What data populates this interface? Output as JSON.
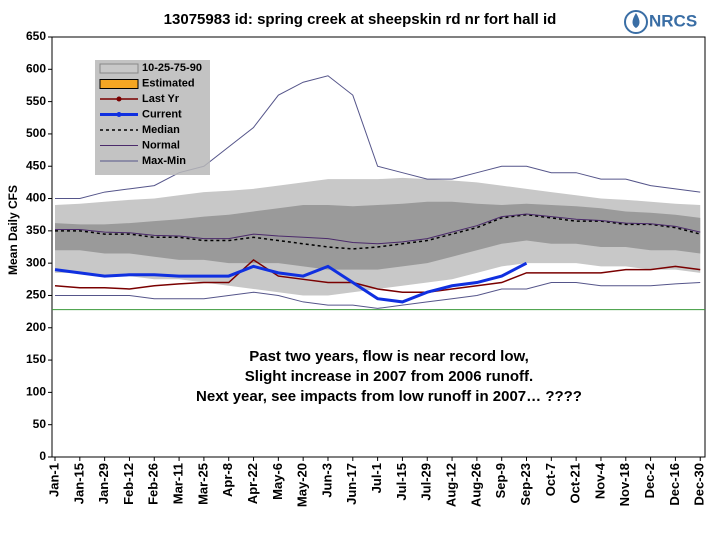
{
  "logo": "NRCS",
  "chart_data": {
    "type": "hydrograph",
    "title": "13075983 id: spring creek at sheepskin rd nr fort hall id",
    "y_label": "Mean Daily CFS",
    "xlim": [
      1,
      366
    ],
    "ylim": [
      0,
      650
    ],
    "yticks": [
      0,
      50,
      100,
      150,
      200,
      250,
      300,
      350,
      400,
      450,
      500,
      550,
      600,
      650
    ],
    "xticks": [
      {
        "value": 1,
        "label": "Jan-1"
      },
      {
        "value": 15,
        "label": "Jan-15"
      },
      {
        "value": 29,
        "label": "Jan-29"
      },
      {
        "value": 43,
        "label": "Feb-12"
      },
      {
        "value": 57,
        "label": "Feb-26"
      },
      {
        "value": 71,
        "label": "Mar-11"
      },
      {
        "value": 85,
        "label": "Mar-25"
      },
      {
        "value": 99,
        "label": "Apr-8"
      },
      {
        "value": 113,
        "label": "Apr-22"
      },
      {
        "value": 127,
        "label": "May-6"
      },
      {
        "value": 141,
        "label": "May-20"
      },
      {
        "value": 155,
        "label": "Jun-3"
      },
      {
        "value": 169,
        "label": "Jun-17"
      },
      {
        "value": 183,
        "label": "Jul-1"
      },
      {
        "value": 197,
        "label": "Jul-15"
      },
      {
        "value": 211,
        "label": "Jul-29"
      },
      {
        "value": 225,
        "label": "Aug-12"
      },
      {
        "value": 239,
        "label": "Aug-26"
      },
      {
        "value": 253,
        "label": "Sep-9"
      },
      {
        "value": 267,
        "label": "Sep-23"
      },
      {
        "value": 281,
        "label": "Oct-7"
      },
      {
        "value": 295,
        "label": "Oct-21"
      },
      {
        "value": 309,
        "label": "Nov-4"
      },
      {
        "value": 323,
        "label": "Nov-18"
      },
      {
        "value": 337,
        "label": "Dec-2"
      },
      {
        "value": 351,
        "label": "Dec-16"
      },
      {
        "value": 365,
        "label": "Dec-30"
      }
    ],
    "x": [
      1,
      15,
      29,
      43,
      57,
      71,
      85,
      99,
      113,
      127,
      141,
      155,
      169,
      183,
      197,
      211,
      225,
      239,
      253,
      267,
      281,
      295,
      309,
      323,
      337,
      351,
      365
    ],
    "reference_line": {
      "value": 228,
      "color": "#3a9a3a"
    },
    "bands": {
      "name": "10-25-75-90",
      "outer_color": "#c8c8c8",
      "inner_color": "#9a9a9a",
      "p90": [
        390,
        392,
        395,
        398,
        400,
        405,
        410,
        412,
        415,
        420,
        425,
        430,
        430,
        430,
        432,
        430,
        428,
        425,
        420,
        415,
        410,
        405,
        400,
        398,
        395,
        392,
        390
      ],
      "p75": [
        362,
        360,
        360,
        362,
        365,
        368,
        372,
        375,
        380,
        385,
        390,
        390,
        388,
        390,
        392,
        395,
        395,
        392,
        390,
        392,
        390,
        388,
        385,
        380,
        378,
        375,
        370
      ],
      "p25": [
        320,
        320,
        315,
        315,
        310,
        305,
        305,
        300,
        300,
        300,
        295,
        290,
        290,
        290,
        295,
        300,
        310,
        320,
        330,
        335,
        330,
        330,
        325,
        325,
        320,
        320,
        315
      ],
      "p10": [
        285,
        285,
        280,
        280,
        275,
        275,
        270,
        265,
        260,
        255,
        250,
        250,
        255,
        260,
        265,
        270,
        275,
        285,
        295,
        300,
        300,
        300,
        295,
        295,
        290,
        290,
        285
      ]
    },
    "maxmin": {
      "name": "Max-Min",
      "color": "#55558a",
      "max": [
        400,
        400,
        410,
        415,
        420,
        440,
        450,
        480,
        510,
        560,
        580,
        590,
        560,
        450,
        440,
        430,
        430,
        440,
        450,
        450,
        440,
        440,
        430,
        430,
        420,
        415,
        410
      ],
      "min": [
        250,
        250,
        250,
        250,
        245,
        245,
        245,
        250,
        255,
        250,
        240,
        235,
        235,
        230,
        235,
        240,
        245,
        250,
        260,
        260,
        270,
        270,
        265,
        265,
        265,
        268,
        270
      ]
    },
    "series": [
      {
        "name": "Estimated",
        "color": "#f5a623"
      },
      {
        "name": "Last Yr",
        "color": "#7a0000",
        "values": [
          265,
          262,
          262,
          260,
          265,
          268,
          270,
          270,
          305,
          280,
          275,
          270,
          270,
          260,
          255,
          255,
          260,
          265,
          270,
          285,
          285,
          285,
          285,
          290,
          290,
          295,
          290
        ]
      },
      {
        "name": "Current",
        "color": "#1030e0",
        "values": [
          290,
          285,
          280,
          282,
          282,
          280,
          280,
          280,
          295,
          285,
          280,
          295,
          270,
          245,
          240,
          255,
          265,
          270,
          280,
          300,
          null,
          null,
          null,
          null,
          null,
          null,
          null
        ]
      },
      {
        "name": "Median",
        "color": "#000000",
        "dash": "3,3",
        "values": [
          350,
          350,
          345,
          345,
          340,
          340,
          335,
          335,
          340,
          335,
          330,
          325,
          322,
          325,
          330,
          335,
          345,
          355,
          370,
          375,
          370,
          365,
          365,
          360,
          360,
          355,
          345
        ]
      },
      {
        "name": "Normal",
        "color": "#4b2a6b",
        "values": [
          352,
          352,
          348,
          347,
          343,
          342,
          338,
          338,
          345,
          342,
          340,
          338,
          332,
          330,
          333,
          338,
          348,
          358,
          372,
          376,
          372,
          368,
          366,
          362,
          361,
          357,
          348
        ]
      }
    ],
    "annotation": [
      "Past two years, flow is near record low,",
      "Slight increase in 2007 from 2006 runoff.",
      "Next year, see impacts from low runoff in 2007… ????"
    ]
  }
}
